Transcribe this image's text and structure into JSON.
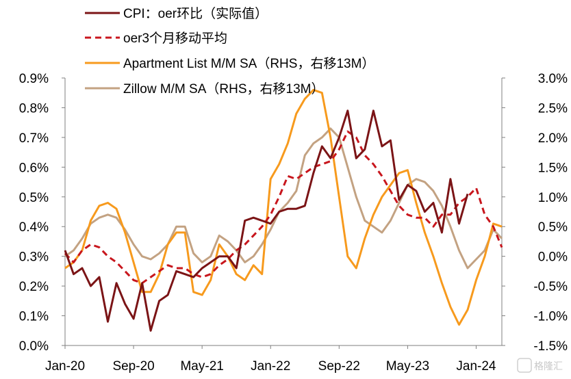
{
  "chart_data": {
    "type": "line",
    "left_axis": {
      "ylim": [
        0,
        0.9
      ],
      "ticks": [
        "0.0%",
        "0.1%",
        "0.2%",
        "0.3%",
        "0.4%",
        "0.5%",
        "0.6%",
        "0.7%",
        "0.8%",
        "0.9%"
      ]
    },
    "right_axis": {
      "ylim": [
        -1.5,
        3.0
      ],
      "ticks": [
        "-1.5%",
        "-1.0%",
        "-0.5%",
        "0.0%",
        "0.5%",
        "1.0%",
        "1.5%",
        "2.0%",
        "2.5%",
        "3.0%"
      ]
    },
    "x_ticks": [
      {
        "label": "Jan-20",
        "i": 0
      },
      {
        "label": "Sep-20",
        "i": 8
      },
      {
        "label": "May-21",
        "i": 16
      },
      {
        "label": "Jan-22",
        "i": 24
      },
      {
        "label": "Sep-22",
        "i": 32
      },
      {
        "label": "May-23",
        "i": 40
      },
      {
        "label": "Jan-24",
        "i": 48
      }
    ],
    "x_start": "Jan-20",
    "series": [
      {
        "name": "CPI：oer环比（实际值）",
        "axis": "left",
        "color": "#7b1416",
        "dash": "",
        "width": 3,
        "values": [
          0.32,
          0.24,
          0.26,
          0.2,
          0.23,
          0.08,
          0.21,
          0.14,
          0.09,
          0.21,
          0.05,
          0.15,
          0.17,
          0.25,
          0.24,
          0.23,
          0.26,
          0.28,
          0.3,
          0.3,
          0.26,
          0.42,
          0.43,
          0.42,
          0.41,
          0.45,
          0.46,
          0.46,
          0.47,
          0.58,
          0.67,
          0.63,
          0.7,
          0.79,
          0.63,
          0.66,
          0.79,
          0.67,
          0.69,
          0.49,
          0.54,
          0.52,
          0.45,
          0.48,
          0.38,
          0.56,
          0.41,
          0.51
        ]
      },
      {
        "name": "oer3个月移动平均",
        "axis": "left",
        "color": "#c8161d",
        "dash": "9,6",
        "width": 3,
        "values": [
          0.31,
          0.28,
          0.32,
          0.34,
          0.33,
          0.3,
          0.28,
          0.25,
          0.22,
          0.21,
          0.23,
          0.25,
          0.27,
          0.26,
          0.26,
          0.24,
          0.23,
          0.24,
          0.27,
          0.29,
          0.32,
          0.34,
          0.37,
          0.4,
          0.44,
          0.5,
          0.57,
          0.56,
          0.58,
          0.6,
          0.61,
          0.62,
          0.66,
          0.72,
          0.7,
          0.64,
          0.61,
          0.57,
          0.52,
          0.47,
          0.44,
          0.43,
          0.43,
          0.4,
          0.44,
          0.44,
          0.48,
          0.5,
          0.53,
          0.44,
          0.4,
          0.33
        ]
      },
      {
        "name": "Apartment List  M/M SA（RHS，右移13M）",
        "axis": "right",
        "color": "#f79a1d",
        "dash": "",
        "width": 3,
        "values": [
          -0.2,
          -0.1,
          0.1,
          0.6,
          0.85,
          0.9,
          0.8,
          0.4,
          -0.1,
          -0.6,
          -0.6,
          -0.3,
          0.2,
          0.4,
          0.4,
          -0.6,
          -0.65,
          -0.4,
          0.2,
          0.0,
          -0.3,
          -0.4,
          -0.15,
          -0.3,
          1.3,
          1.55,
          1.9,
          2.4,
          2.65,
          2.8,
          2.75,
          2.0,
          1.0,
          0.0,
          -0.2,
          0.3,
          0.7,
          1.0,
          1.2,
          1.4,
          1.45,
          0.9,
          0.4,
          0.0,
          -0.45,
          -0.85,
          -1.15,
          -0.9,
          -0.4,
          0.0,
          0.55,
          0.5
        ]
      },
      {
        "name": "Zillow M/M SA（RHS，右移13M）",
        "axis": "right",
        "color": "#c3a282",
        "dash": "",
        "width": 3,
        "values": [
          0.0,
          0.1,
          0.3,
          0.55,
          0.65,
          0.7,
          0.65,
          0.45,
          0.2,
          0.0,
          -0.05,
          0.05,
          0.2,
          0.5,
          0.5,
          0.05,
          -0.1,
          0.0,
          0.35,
          0.25,
          0.1,
          -0.1,
          0.0,
          0.2,
          0.45,
          0.75,
          0.9,
          1.1,
          1.7,
          1.9,
          2.0,
          2.15,
          2.0,
          1.5,
          1.0,
          0.6,
          0.5,
          0.4,
          0.6,
          0.9,
          1.2,
          1.3,
          1.25,
          1.1,
          0.85,
          0.5,
          0.1,
          -0.2,
          -0.05,
          0.1,
          0.45,
          0.3
        ]
      }
    ]
  },
  "watermark": "格隆汇"
}
